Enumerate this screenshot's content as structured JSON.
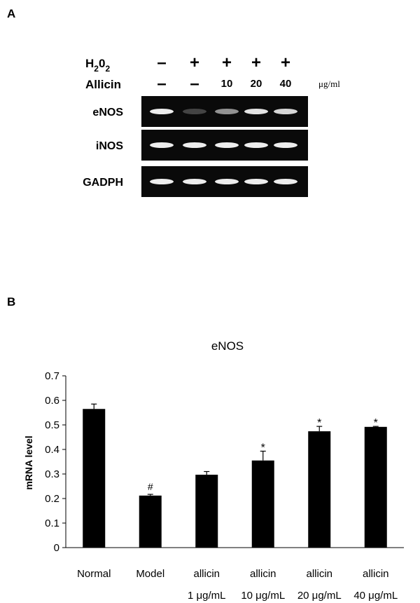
{
  "panel_a": {
    "label": "A",
    "h2o2": {
      "label_main": "H",
      "label_sub1": "2",
      "label_mid": "0",
      "label_sub2": "2",
      "lanes": [
        "–",
        "+",
        "+",
        "+",
        "+"
      ]
    },
    "allicin": {
      "label": "Allicin",
      "lanes": [
        "–",
        "–",
        "10",
        "20",
        "40"
      ],
      "unit": "μg/ml"
    },
    "genes": [
      {
        "name": "eNOS",
        "intensities": [
          0.95,
          0.3,
          0.65,
          0.92,
          0.88
        ]
      },
      {
        "name": "iNOS",
        "intensities": [
          0.95,
          0.95,
          0.95,
          0.95,
          0.95
        ]
      },
      {
        "name": "GADPH",
        "intensities": [
          0.95,
          0.95,
          0.95,
          0.95,
          0.95
        ]
      }
    ]
  },
  "panel_b": {
    "label": "B"
  },
  "chart_data": {
    "type": "bar",
    "title": "eNOS",
    "ylabel": "mRNA level",
    "xlabel": "",
    "ylim": [
      0,
      0.7
    ],
    "yticks": [
      "0",
      "0.1",
      "0.2",
      "0.3",
      "0.4",
      "0.5",
      "0.6",
      "0.7"
    ],
    "categories": [
      {
        "line1": "Normal",
        "line2": ""
      },
      {
        "line1": "Model",
        "line2": ""
      },
      {
        "line1": "allicin",
        "line2": "1 μg/mL"
      },
      {
        "line1": "allicin",
        "line2": "10 μg/mL"
      },
      {
        "line1": "allicin",
        "line2": "20 μg/mL"
      },
      {
        "line1": "allicin",
        "line2": "40 μg/mL"
      }
    ],
    "values": [
      0.565,
      0.212,
      0.297,
      0.355,
      0.474,
      0.492
    ],
    "errors": [
      0.02,
      0.005,
      0.013,
      0.038,
      0.02,
      0.002
    ],
    "annotations": [
      "",
      "#",
      "",
      "*",
      "*",
      "*"
    ],
    "bar_color": "#000000",
    "grid": false
  }
}
